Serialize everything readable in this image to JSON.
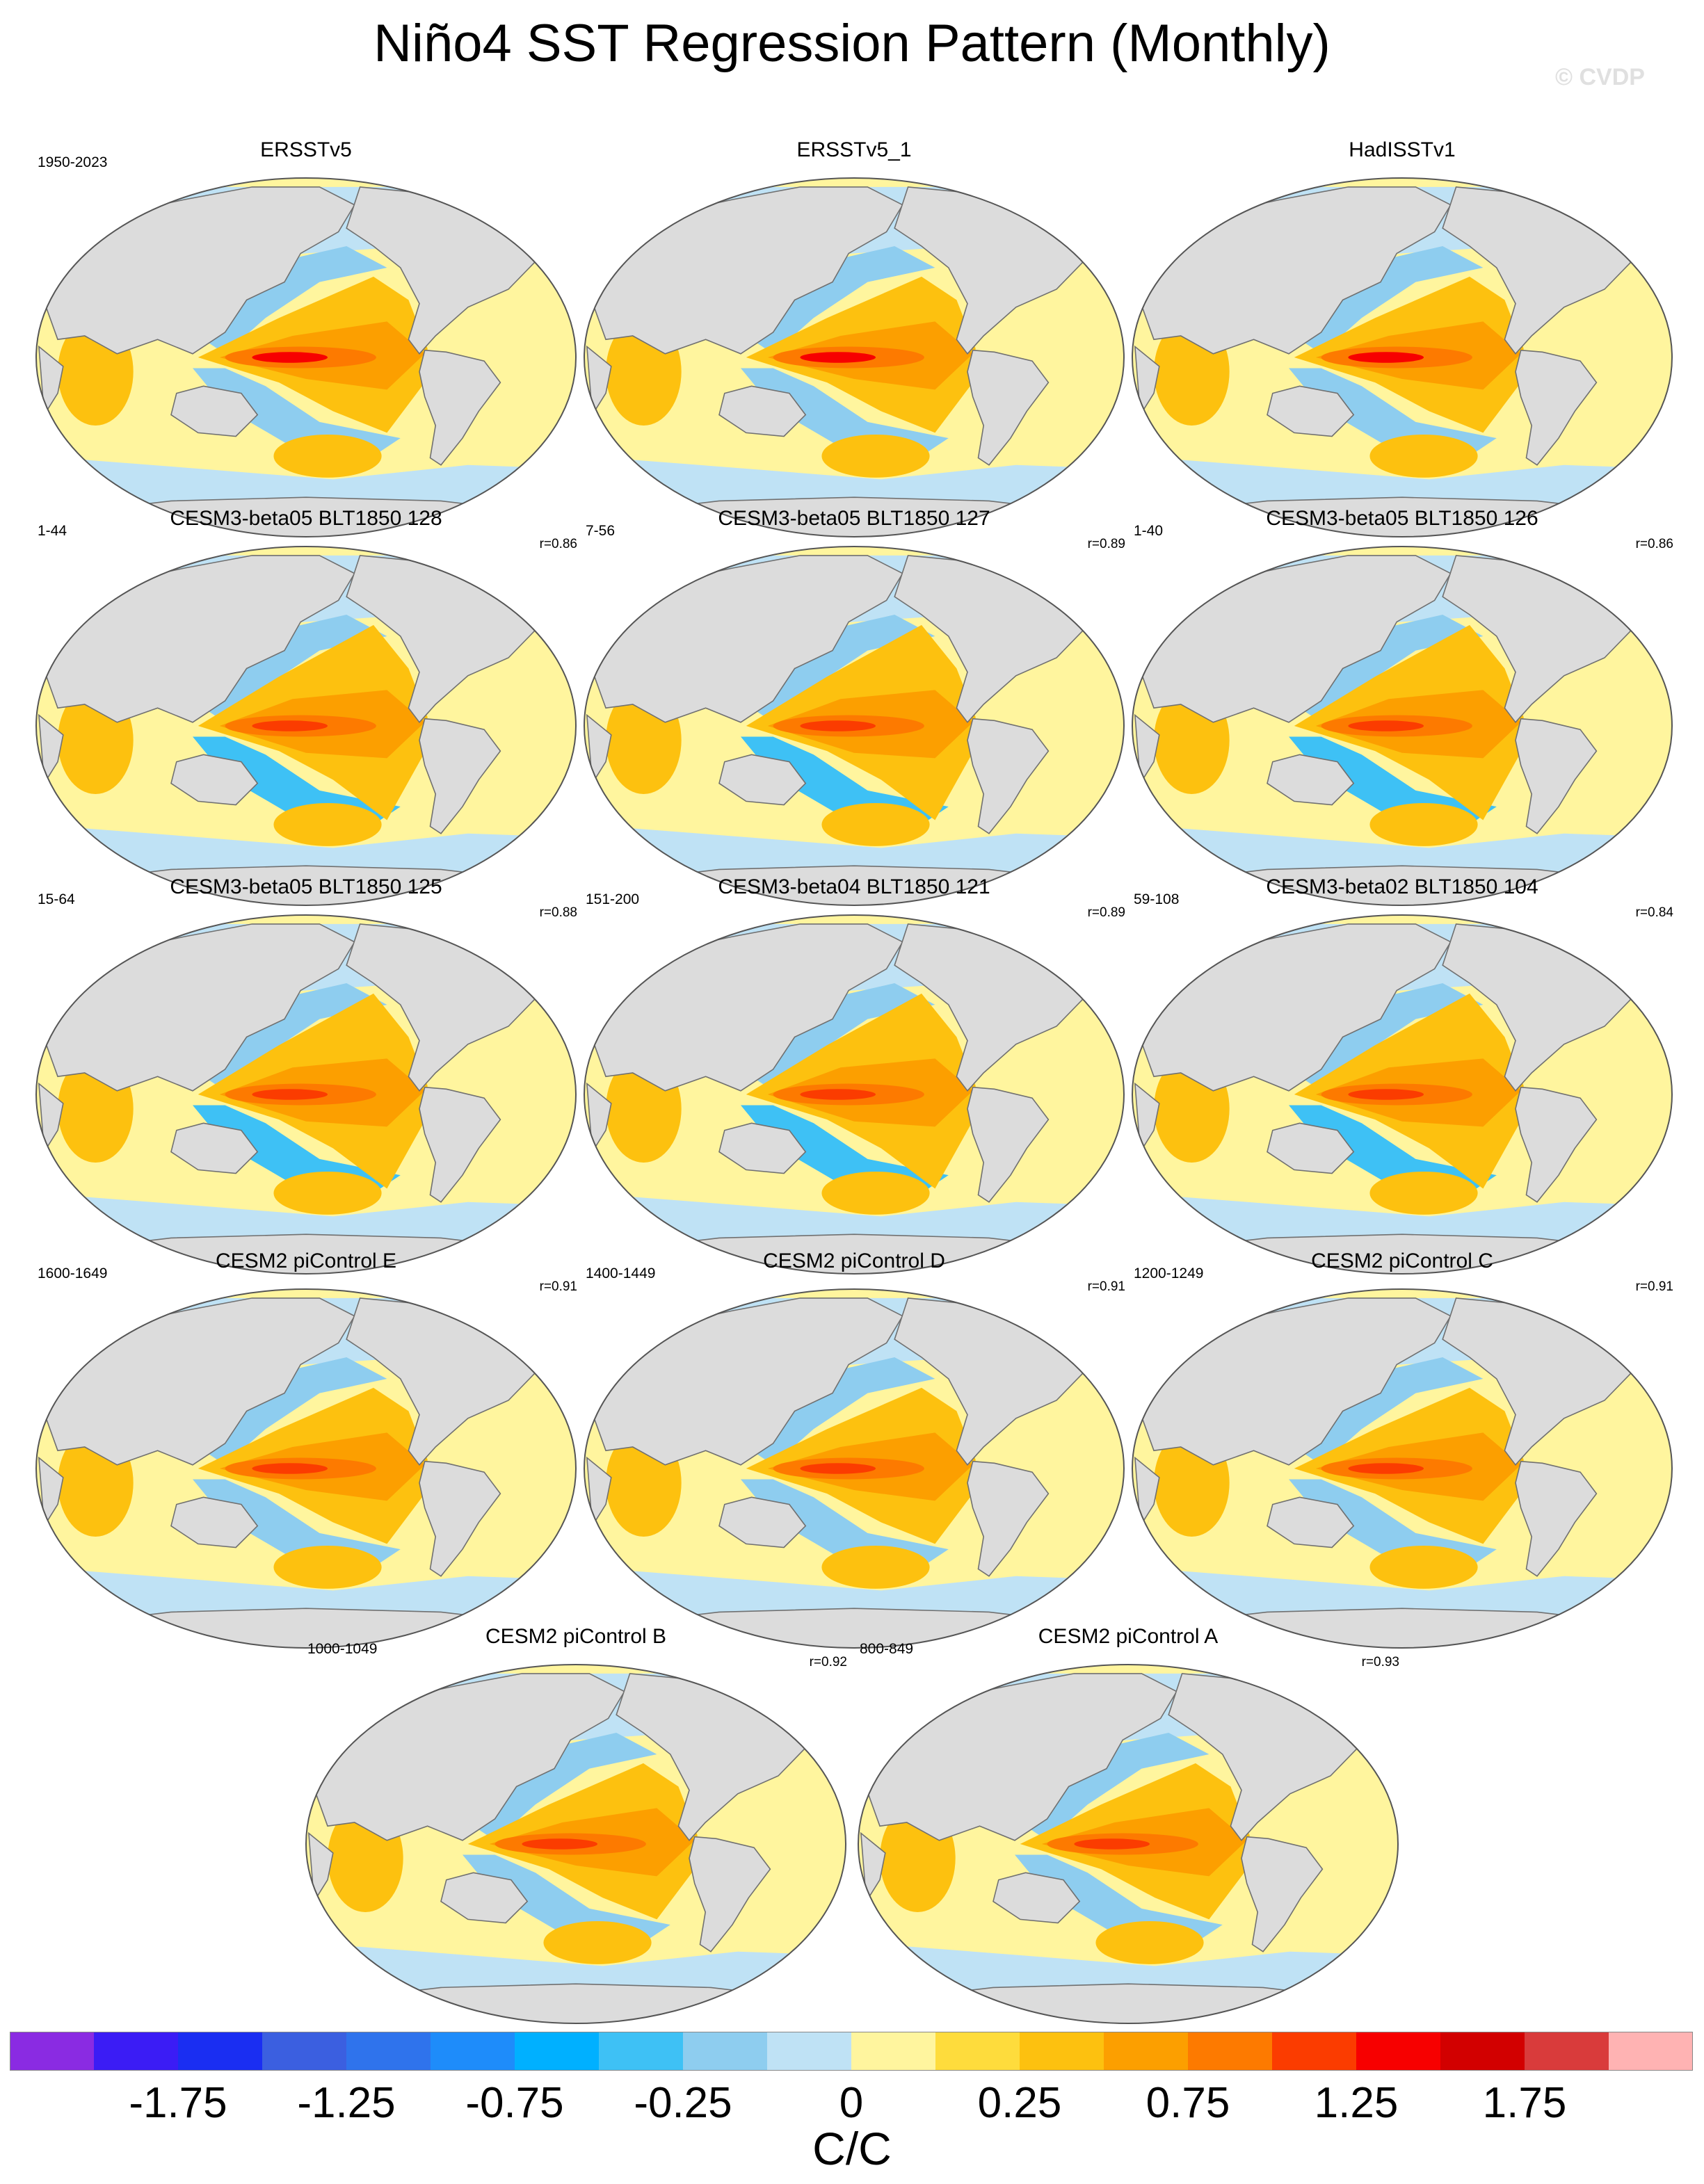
{
  "title": "Niño4 SST Regression Pattern (Monthly)",
  "watermark": "© CVDP",
  "panels": [
    {
      "title": "ERSSTv5",
      "period": "1950-2023",
      "r": "",
      "variant": "obs"
    },
    {
      "title": "ERSSTv5_1",
      "period": "",
      "r": "",
      "variant": "obs"
    },
    {
      "title": "HadISSTv1",
      "period": "",
      "r": "",
      "variant": "had"
    },
    {
      "title": "CESM3-beta05 BLT1850 128",
      "period": "1-44",
      "r": "r=0.86",
      "variant": "cesm3"
    },
    {
      "title": "CESM3-beta05 BLT1850 127",
      "period": "7-56",
      "r": "r=0.89",
      "variant": "cesm3"
    },
    {
      "title": "CESM3-beta05 BLT1850 126",
      "period": "1-40",
      "r": "r=0.86",
      "variant": "cesm3"
    },
    {
      "title": "CESM3-beta05 BLT1850 125",
      "period": "15-64",
      "r": "r=0.88",
      "variant": "cesm3"
    },
    {
      "title": "CESM3-beta04 BLT1850 121",
      "period": "151-200",
      "r": "r=0.89",
      "variant": "cesm3"
    },
    {
      "title": "CESM3-beta02 BLT1850 104",
      "period": "59-108",
      "r": "r=0.84",
      "variant": "cesm3"
    },
    {
      "title": "CESM2 piControl E",
      "period": "1600-1649",
      "r": "r=0.91",
      "variant": "cesm2"
    },
    {
      "title": "CESM2 piControl D",
      "period": "1400-1449",
      "r": "r=0.91",
      "variant": "cesm2"
    },
    {
      "title": "CESM2 piControl C",
      "period": "1200-1249",
      "r": "r=0.91",
      "variant": "cesm2"
    },
    {
      "title": "CESM2 piControl B",
      "period": "1000-1049",
      "r": "r=0.92",
      "variant": "cesm2"
    },
    {
      "title": "CESM2 piControl A",
      "period": "800-849",
      "r": "r=0.93",
      "variant": "cesm2"
    }
  ],
  "colorbar": {
    "colors": [
      "#8a2be2",
      "#3b1cf5",
      "#1a2ef2",
      "#3b5fe0",
      "#2f73ec",
      "#1e8cfa",
      "#00b0ff",
      "#3ec1f5",
      "#8ecdef",
      "#bfe2f5",
      "#fff59e",
      "#fedc3c",
      "#fdc10f",
      "#fc9f00",
      "#fd7a00",
      "#fb3c00",
      "#f70000",
      "#d20000",
      "#d93b3b",
      "#ffb3b3"
    ],
    "labels": [
      "-1.75",
      "-1.25",
      "-0.75",
      "-0.25",
      "0",
      "0.25",
      "0.75",
      "1.25",
      "1.75"
    ],
    "units": "C/C"
  },
  "map_colors": {
    "land": "#dcdcdc",
    "coast": "#707070",
    "ocean": "#fff59e",
    "blue_light": "#bfe2f5",
    "blue_mid": "#8ecdef",
    "blue_strong": "#3ec1f5",
    "yellow_mid": "#fedc3c",
    "orange_light": "#fdc10f",
    "orange": "#fc9f00",
    "orange_dark": "#fd7a00",
    "red_orange": "#fb3c00",
    "red": "#f70000"
  }
}
